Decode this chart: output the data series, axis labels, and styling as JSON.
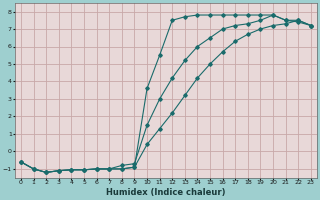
{
  "xlabel": "Humidex (Indice chaleur)",
  "bg_color": "#9ecfcf",
  "plot_bg_color": "#e8d8d8",
  "grid_color": "#c8a8a8",
  "line_color": "#1a6b6b",
  "xlim": [
    -0.5,
    23.5
  ],
  "ylim": [
    -1.5,
    8.5
  ],
  "xticks": [
    0,
    1,
    2,
    3,
    4,
    5,
    6,
    7,
    8,
    9,
    10,
    11,
    12,
    13,
    14,
    15,
    16,
    17,
    18,
    19,
    20,
    21,
    22,
    23
  ],
  "yticks": [
    -1,
    0,
    1,
    2,
    3,
    4,
    5,
    6,
    7,
    8
  ],
  "curve1_x": [
    0,
    1,
    2,
    3,
    4,
    5,
    6,
    7,
    8,
    9,
    10,
    11,
    12,
    13,
    14,
    15,
    16,
    17,
    18,
    19,
    20,
    21,
    22,
    23
  ],
  "curve1_y": [
    -0.6,
    -1.0,
    -1.2,
    -1.1,
    -1.05,
    -1.05,
    -1.0,
    -1.0,
    -1.0,
    -0.9,
    3.6,
    5.5,
    7.5,
    7.7,
    7.8,
    7.8,
    7.8,
    7.8,
    7.8,
    7.8,
    7.8,
    7.5,
    7.5,
    7.2
  ],
  "curve2_x": [
    0,
    1,
    2,
    3,
    4,
    5,
    6,
    7,
    8,
    9,
    10,
    11,
    12,
    13,
    14,
    15,
    16,
    17,
    18,
    19,
    20,
    21,
    22,
    23
  ],
  "curve2_y": [
    -0.6,
    -1.0,
    -1.2,
    -1.1,
    -1.05,
    -1.05,
    -1.0,
    -1.0,
    -0.8,
    -0.7,
    1.5,
    3.0,
    4.2,
    5.2,
    6.0,
    6.5,
    7.0,
    7.2,
    7.3,
    7.5,
    7.8,
    7.5,
    7.4,
    7.2
  ],
  "curve3_x": [
    0,
    1,
    2,
    3,
    4,
    5,
    6,
    7,
    8,
    9,
    10,
    11,
    12,
    13,
    14,
    15,
    16,
    17,
    18,
    19,
    20,
    21,
    22,
    23
  ],
  "curve3_y": [
    -0.6,
    -1.0,
    -1.2,
    -1.1,
    -1.05,
    -1.05,
    -1.0,
    -1.0,
    -1.0,
    -0.9,
    0.4,
    1.3,
    2.2,
    3.2,
    4.2,
    5.0,
    5.7,
    6.3,
    6.7,
    7.0,
    7.2,
    7.3,
    7.5,
    7.2
  ]
}
